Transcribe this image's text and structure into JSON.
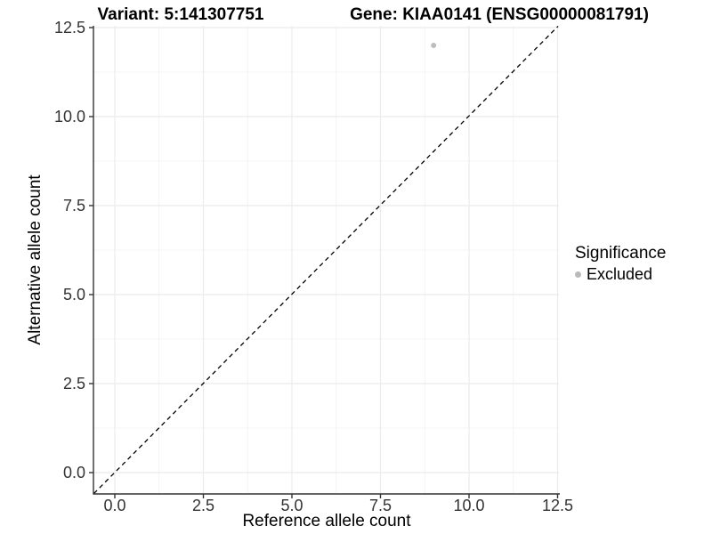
{
  "titles": {
    "variant": "Variant: 5:141307751",
    "gene": "Gene: KIAA0141 (ENSG00000081791)"
  },
  "legend": {
    "title": "Significance",
    "items": [
      {
        "label": "Excluded",
        "color": "#b9b9b9"
      }
    ]
  },
  "chart_data": {
    "type": "scatter",
    "title": "Variant: 5:141307751   Gene: KIAA0141 (ENSG00000081791)",
    "xlabel": "Reference allele count",
    "ylabel": "Alternative allele count",
    "xlim": [
      -0.6,
      12.55
    ],
    "ylim": [
      -0.6,
      12.55
    ],
    "x_ticks": {
      "values": [
        0,
        2.5,
        5,
        7.5,
        10,
        12.5
      ],
      "labels": [
        "0.0",
        "2.5",
        "5.0",
        "7.5",
        "10.0",
        "12.5"
      ]
    },
    "y_ticks": {
      "values": [
        0,
        2.5,
        5,
        7.5,
        10,
        12.5
      ],
      "labels": [
        "0.0",
        "2.5",
        "5.0",
        "7.5",
        "10.0",
        "12.5"
      ]
    },
    "minor_grid_values": [
      1.25,
      3.75,
      6.25,
      8.75,
      11.25
    ],
    "grid": "major+minor",
    "series": [
      {
        "name": "Excluded",
        "color": "#bdbdbd",
        "x": [
          9
        ],
        "y": [
          12
        ]
      }
    ],
    "reference_line": {
      "type": "identity y=x",
      "style": "dashed",
      "color": "#000000"
    },
    "legend_position": "right",
    "colors": {
      "axis_line": "#333333",
      "tick": "#333333",
      "tick_label": "#333333",
      "grid_major": "#ebebeb",
      "grid_minor": "#f4f4f4",
      "background": "#ffffff"
    }
  }
}
